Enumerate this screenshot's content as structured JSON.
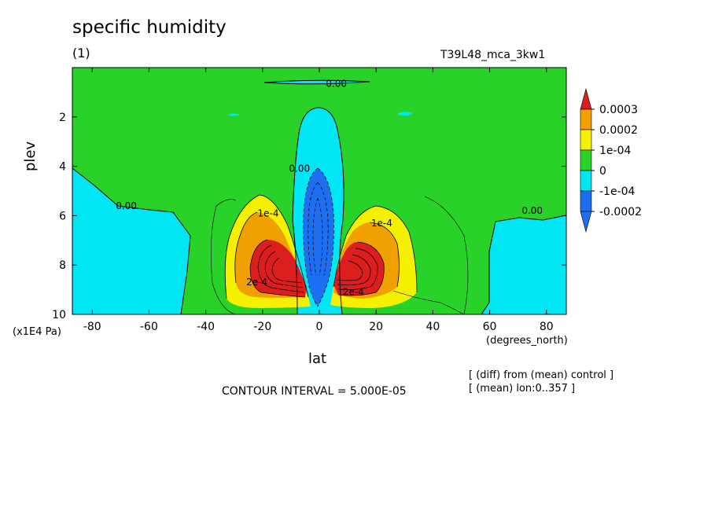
{
  "title": "specific humidity",
  "subtitle": "(1)",
  "run_name": "T39L48_mca_3kw1",
  "x_units": "(degrees_north)",
  "y_units": "(x1E4 Pa)",
  "contour_interval": "CONTOUR INTERVAL = 5.000E-05",
  "notes": [
    "[ (diff) from (mean) control ]",
    "[ (mean) lon:0..357 ]"
  ],
  "colors": {
    "dark_blue": "#1e6ef0",
    "cyan": "#00e6f5",
    "green": "#28d228",
    "yellow": "#f5f000",
    "orange": "#f0a000",
    "red": "#dc1e1e"
  },
  "chart_data": {
    "type": "heatmap",
    "xlabel": "lat",
    "ylabel": "plev",
    "xlim": [
      -87,
      87
    ],
    "ylim": [
      0,
      10
    ],
    "x_ticks": [
      "-80",
      "-60",
      "-40",
      "-20",
      "0",
      "20",
      "40",
      "60",
      "80"
    ],
    "y_ticks": [
      "2",
      "4",
      "6",
      "8",
      "10"
    ],
    "y_inverted": true,
    "colorbar": {
      "labels": [
        "0.0003",
        "0.0002",
        "1e-04",
        "0",
        "-1e-04",
        "-0.0002"
      ],
      "bins": [
        {
          "min": null,
          "max": -0.0002,
          "color": "#1e6ef0"
        },
        {
          "min": -0.0002,
          "max": -0.0001,
          "color": "#1e6ef0"
        },
        {
          "min": -0.0001,
          "max": 0,
          "color": "#00e6f5"
        },
        {
          "min": 0,
          "max": 0.0001,
          "color": "#28d228"
        },
        {
          "min": 0.0001,
          "max": 0.0002,
          "color": "#f5f000"
        },
        {
          "min": 0.0002,
          "max": 0.0003,
          "color": "#f0a000"
        },
        {
          "min": 0.0003,
          "max": null,
          "color": "#dc1e1e"
        }
      ]
    },
    "contour_labels": [
      {
        "text": "0.00",
        "lat": 6,
        "plev": 0.65
      },
      {
        "text": "0.00",
        "lat": -68,
        "plev": 5.6
      },
      {
        "text": "0.00",
        "lat": 75,
        "plev": 5.8
      },
      {
        "text": "0.00",
        "lat": -7,
        "plev": 4.1
      },
      {
        "text": "1e-4",
        "lat": -18,
        "plev": 5.9
      },
      {
        "text": "1e-4",
        "lat": 22,
        "plev": 6.3
      },
      {
        "text": "2e-4",
        "lat": -22,
        "plev": 8.7
      },
      {
        "text": "2e-4",
        "lat": 12,
        "plev": 9.1
      }
    ]
  }
}
